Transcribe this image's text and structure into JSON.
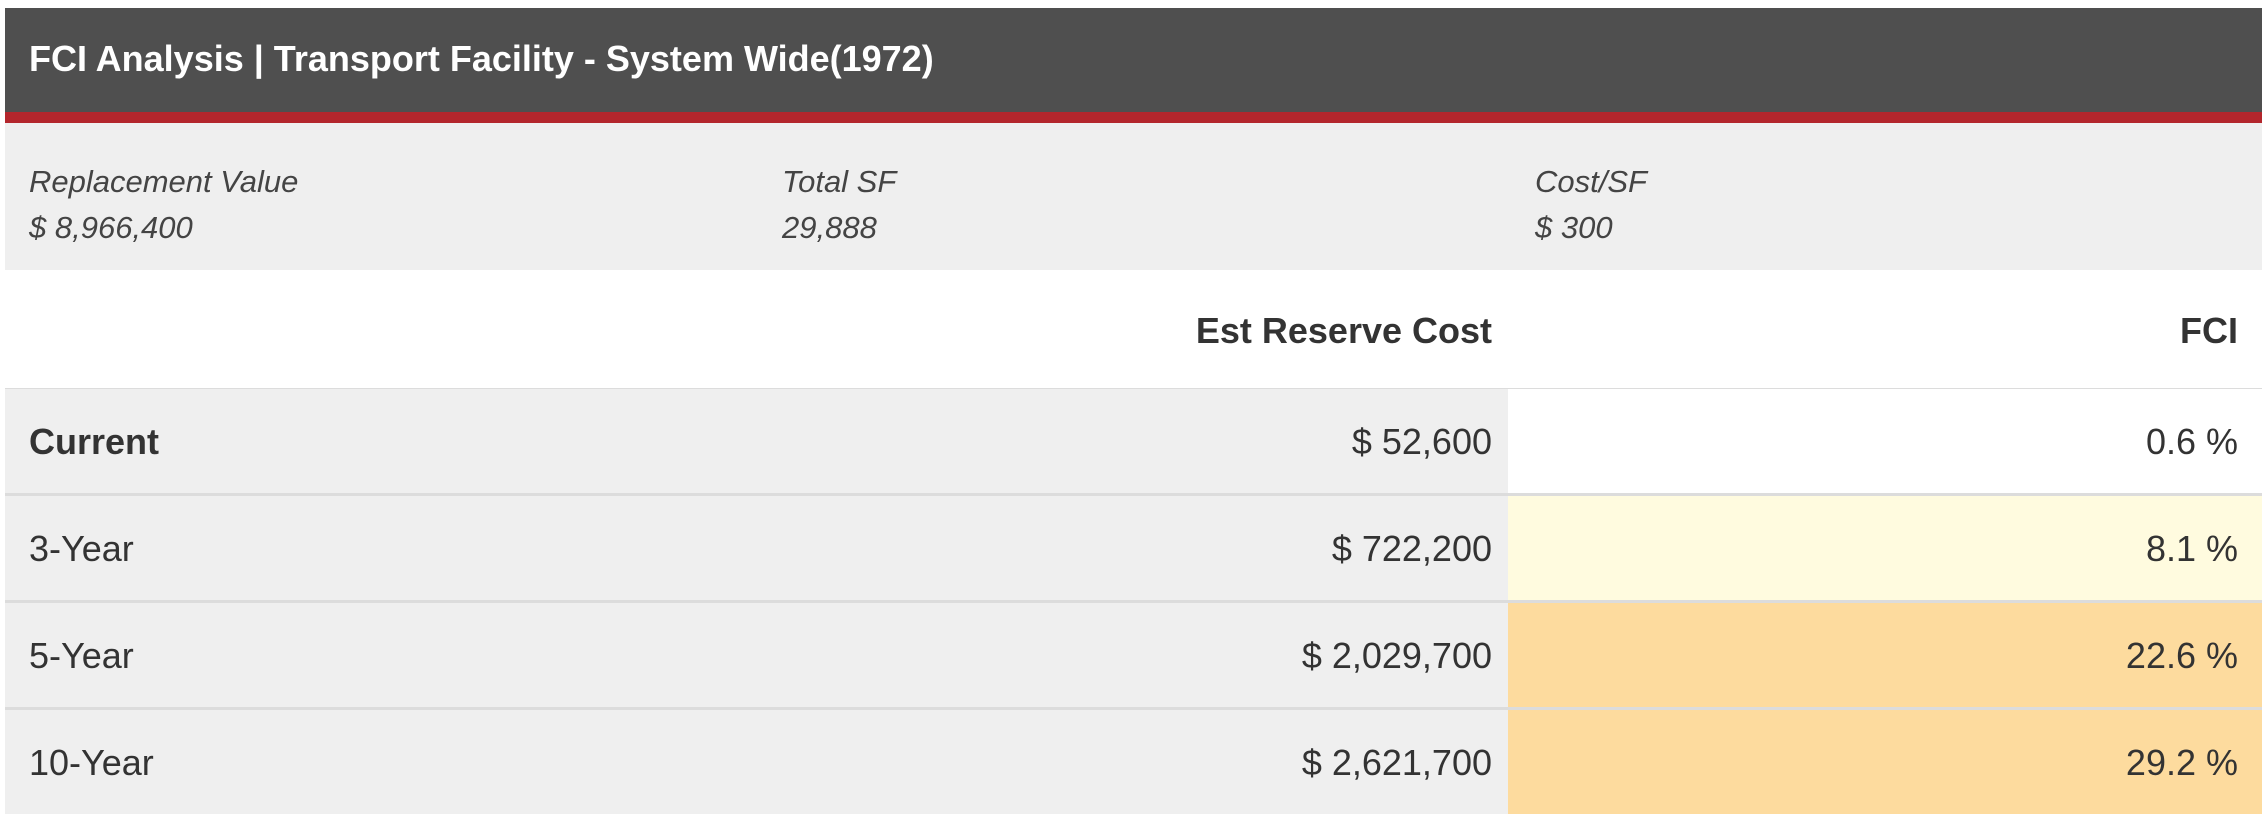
{
  "header": {
    "title": "FCI Analysis | Transport Facility - System Wide(1972)"
  },
  "summary": {
    "replacement_value": {
      "label": "Replacement Value",
      "value": "$ 8,966,400"
    },
    "total_sf": {
      "label": "Total SF",
      "value": "29,888"
    },
    "cost_per_sf": {
      "label": "Cost/SF",
      "value": "$ 300"
    }
  },
  "table": {
    "columns": [
      "",
      "Est Reserve Cost",
      "FCI"
    ],
    "rows": [
      {
        "label": "Current",
        "cost": "$ 52,600",
        "fci": "0.6 %",
        "fci_color": "#ffffff"
      },
      {
        "label": "3-Year",
        "cost": "$ 722,200",
        "fci": "8.1 %",
        "fci_color": "#fffbdf"
      },
      {
        "label": "5-Year",
        "cost": "$ 2,029,700",
        "fci": "22.6 %",
        "fci_color": "#fddb9e"
      },
      {
        "label": "10-Year",
        "cost": "$ 2,621,700",
        "fci": "29.2 %",
        "fci_color": "#fddb9e"
      }
    ]
  },
  "colors": {
    "header_bg": "#4f4f4f",
    "header_accent": "#b3262c",
    "summary_bg": "#efefef",
    "row_bg": "#efefef"
  }
}
